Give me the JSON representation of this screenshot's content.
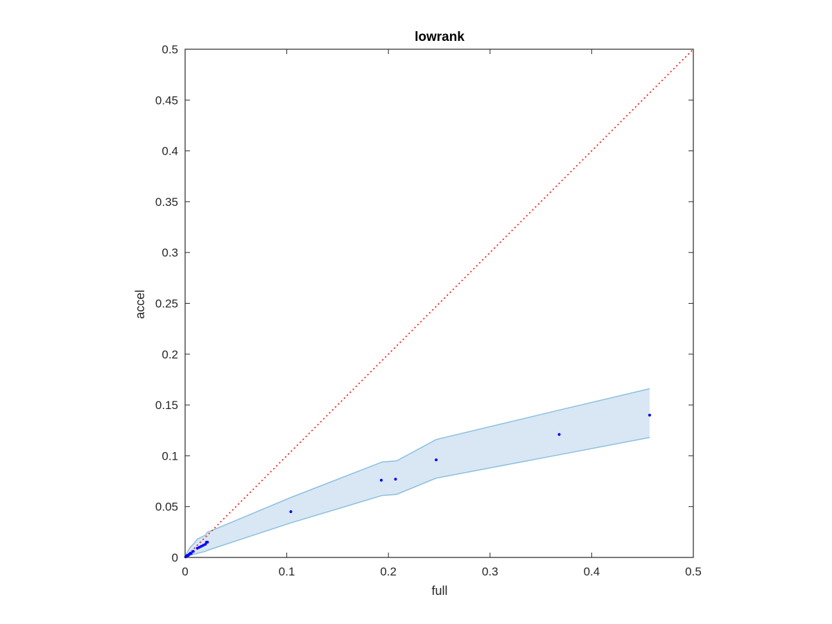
{
  "chart_data": {
    "type": "scatter",
    "title": "lowrank",
    "xlabel": "full",
    "ylabel": "accel",
    "xlim": [
      0,
      0.5
    ],
    "ylim": [
      0,
      0.5
    ],
    "xticks": [
      0,
      0.1,
      0.2,
      0.3,
      0.4,
      0.5
    ],
    "yticks": [
      0,
      0.05,
      0.1,
      0.15,
      0.2,
      0.25,
      0.3,
      0.35,
      0.4,
      0.45,
      0.5
    ],
    "xtick_labels": [
      "0",
      "0.1",
      "0.2",
      "0.3",
      "0.4",
      "0.5"
    ],
    "ytick_labels": [
      "0",
      "0.05",
      "0.1",
      "0.15",
      "0.2",
      "0.25",
      "0.3",
      "0.35",
      "0.4",
      "0.45",
      "0.5"
    ],
    "grid": false,
    "reference_line": {
      "x": [
        0,
        0.5
      ],
      "y": [
        0,
        0.5
      ],
      "style": "dotted",
      "color": "#ff0000"
    },
    "band": {
      "color": "#d8e7f3",
      "edge_color": "#8bbfe0",
      "x": [
        0.0,
        0.002,
        0.005,
        0.008,
        0.012,
        0.016,
        0.02,
        0.022,
        0.025,
        0.104,
        0.194,
        0.208,
        0.247,
        0.368,
        0.457
      ],
      "upper": [
        0.0,
        0.005,
        0.01,
        0.013,
        0.018,
        0.02,
        0.022,
        0.025,
        0.026,
        0.059,
        0.094,
        0.095,
        0.116,
        0.145,
        0.166
      ],
      "lower": [
        0.0,
        0.001,
        0.002,
        0.003,
        0.004,
        0.005,
        0.006,
        0.007,
        0.008,
        0.034,
        0.061,
        0.062,
        0.078,
        0.101,
        0.118
      ]
    },
    "series": [
      {
        "color": "#0000ff",
        "x": [
          0.0005,
          0.001,
          0.0015,
          0.002,
          0.003,
          0.004,
          0.005,
          0.006,
          0.008,
          0.012,
          0.014,
          0.016,
          0.018,
          0.02,
          0.021,
          0.022,
          0.104,
          0.193,
          0.207,
          0.247,
          0.368,
          0.457
        ],
        "y": [
          0.0005,
          0.001,
          0.001,
          0.002,
          0.002,
          0.003,
          0.004,
          0.004,
          0.006,
          0.009,
          0.01,
          0.011,
          0.012,
          0.013,
          0.015,
          0.015,
          0.045,
          0.076,
          0.077,
          0.096,
          0.121,
          0.14
        ]
      }
    ]
  }
}
